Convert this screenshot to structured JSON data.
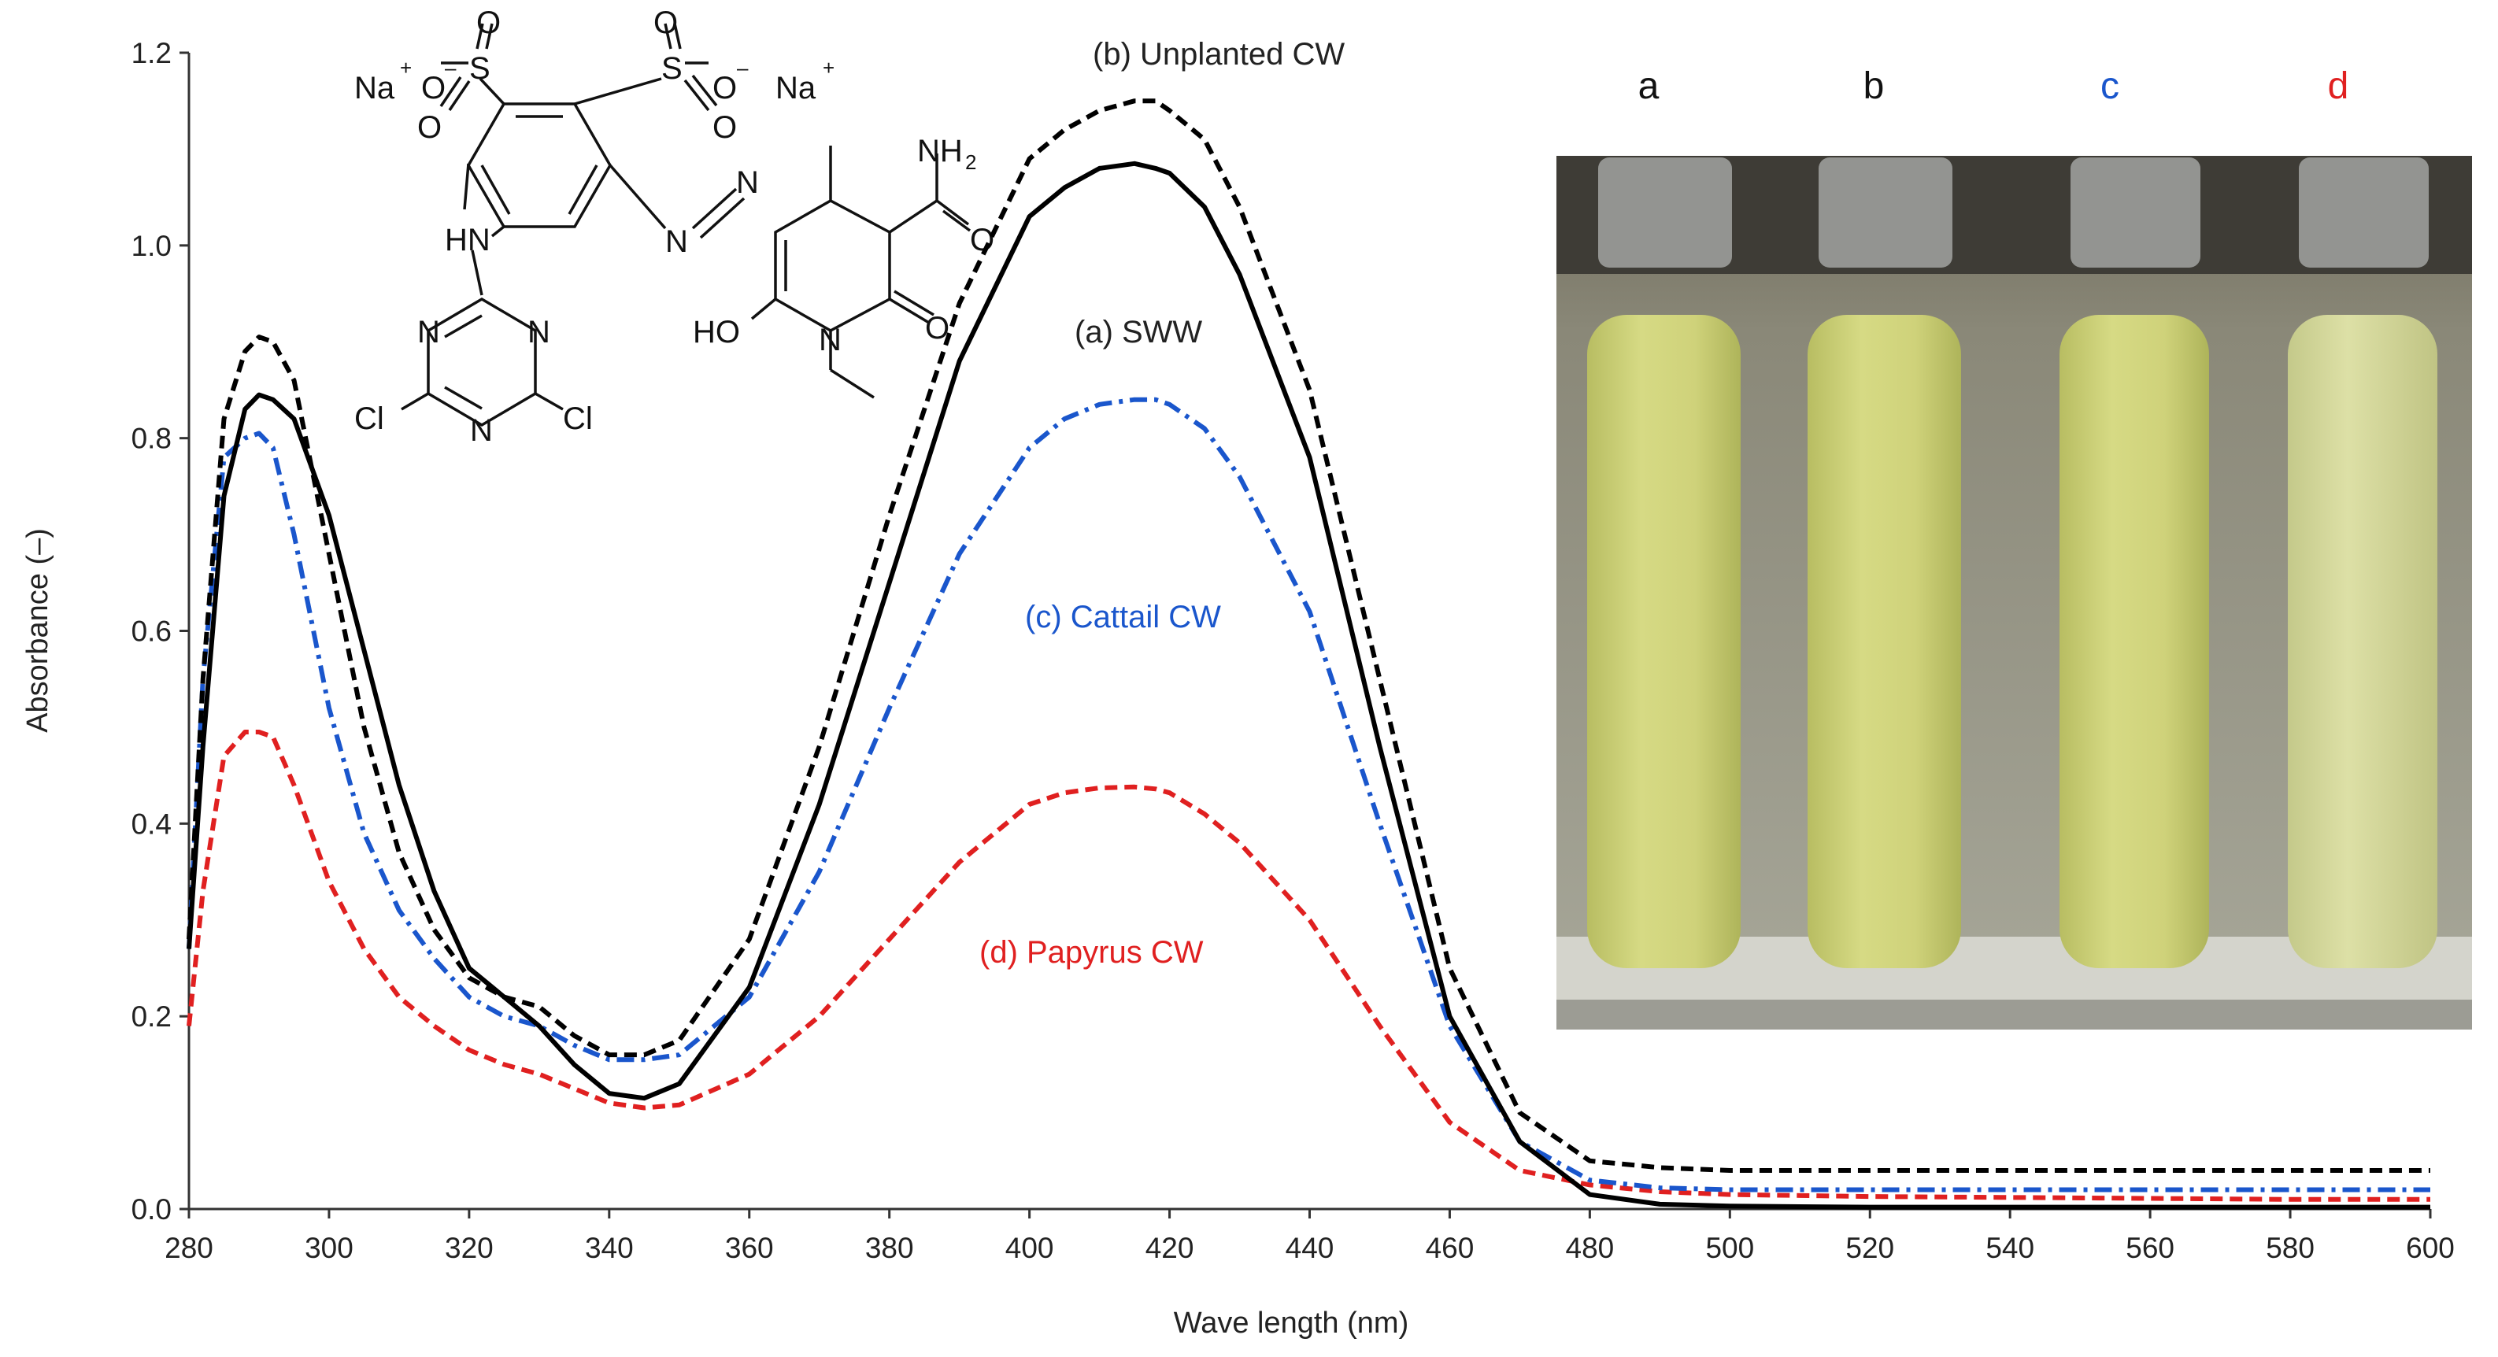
{
  "chart_data": {
    "type": "line",
    "xlabel": "Wave length (nm)",
    "ylabel": "Absorbance (–)",
    "xlim": [
      280,
      600
    ],
    "ylim": [
      0,
      1.2
    ],
    "grid": false,
    "xticks": [
      "280",
      "300",
      "320",
      "340",
      "360",
      "380",
      "400",
      "420",
      "440",
      "460",
      "480",
      "500",
      "520",
      "540",
      "560",
      "580",
      "600"
    ],
    "yticks": [
      "0.0",
      "0.2",
      "0.4",
      "0.6",
      "0.8",
      "1.0",
      "1.2"
    ],
    "series": [
      {
        "name": "(a) SWW",
        "color": "#000000",
        "dash": "solid",
        "x": [
          280,
          282,
          285,
          288,
          290,
          292,
          295,
          300,
          305,
          310,
          315,
          320,
          325,
          330,
          335,
          340,
          345,
          350,
          360,
          370,
          380,
          390,
          400,
          405,
          410,
          415,
          418,
          420,
          425,
          430,
          440,
          450,
          460,
          470,
          480,
          490,
          500,
          520,
          540,
          560,
          580,
          600
        ],
        "y": [
          0.27,
          0.48,
          0.74,
          0.83,
          0.845,
          0.84,
          0.82,
          0.72,
          0.58,
          0.44,
          0.33,
          0.25,
          0.22,
          0.19,
          0.15,
          0.12,
          0.115,
          0.13,
          0.23,
          0.42,
          0.65,
          0.88,
          1.03,
          1.06,
          1.08,
          1.085,
          1.08,
          1.075,
          1.04,
          0.97,
          0.78,
          0.48,
          0.2,
          0.07,
          0.015,
          0.005,
          0.003,
          0.002,
          0.002,
          0.002,
          0.002,
          0.002
        ]
      },
      {
        "name": "(b) Unplanted CW",
        "color": "#000000",
        "dash": "dashed",
        "x": [
          280,
          282,
          285,
          288,
          290,
          292,
          295,
          300,
          305,
          310,
          315,
          320,
          325,
          330,
          335,
          340,
          345,
          350,
          360,
          370,
          380,
          390,
          400,
          405,
          410,
          415,
          418,
          420,
          425,
          430,
          440,
          450,
          460,
          470,
          480,
          490,
          500,
          520,
          540,
          560,
          580,
          600
        ],
        "y": [
          0.28,
          0.55,
          0.82,
          0.89,
          0.905,
          0.9,
          0.86,
          0.68,
          0.5,
          0.37,
          0.29,
          0.24,
          0.22,
          0.21,
          0.18,
          0.16,
          0.16,
          0.175,
          0.28,
          0.48,
          0.72,
          0.94,
          1.09,
          1.12,
          1.14,
          1.15,
          1.15,
          1.14,
          1.11,
          1.04,
          0.85,
          0.55,
          0.25,
          0.1,
          0.05,
          0.043,
          0.04,
          0.04,
          0.04,
          0.04,
          0.04,
          0.04
        ]
      },
      {
        "name": "(c) Cattail CW",
        "color": "#1a56cc",
        "dash": "dashdot",
        "x": [
          280,
          282,
          285,
          288,
          290,
          292,
          295,
          300,
          305,
          310,
          315,
          320,
          325,
          330,
          335,
          340,
          345,
          350,
          360,
          370,
          380,
          390,
          400,
          405,
          410,
          415,
          418,
          420,
          425,
          430,
          440,
          450,
          460,
          470,
          480,
          490,
          500,
          520,
          540,
          560,
          580,
          600
        ],
        "y": [
          0.27,
          0.55,
          0.78,
          0.8,
          0.805,
          0.79,
          0.7,
          0.52,
          0.39,
          0.31,
          0.26,
          0.22,
          0.2,
          0.19,
          0.17,
          0.155,
          0.155,
          0.16,
          0.22,
          0.35,
          0.52,
          0.68,
          0.79,
          0.82,
          0.835,
          0.84,
          0.84,
          0.835,
          0.81,
          0.76,
          0.62,
          0.4,
          0.19,
          0.07,
          0.03,
          0.022,
          0.02,
          0.02,
          0.02,
          0.02,
          0.02,
          0.02
        ]
      },
      {
        "name": "(d) Papyrus CW",
        "color": "#e02020",
        "dash": "dashed",
        "x": [
          280,
          282,
          285,
          288,
          290,
          292,
          295,
          300,
          305,
          310,
          315,
          320,
          325,
          330,
          335,
          340,
          345,
          350,
          360,
          370,
          380,
          390,
          400,
          405,
          410,
          415,
          418,
          420,
          425,
          430,
          440,
          450,
          460,
          470,
          480,
          490,
          500,
          520,
          540,
          560,
          580,
          600
        ],
        "y": [
          0.19,
          0.33,
          0.47,
          0.495,
          0.495,
          0.49,
          0.44,
          0.34,
          0.27,
          0.22,
          0.19,
          0.165,
          0.15,
          0.14,
          0.125,
          0.11,
          0.105,
          0.108,
          0.14,
          0.2,
          0.28,
          0.36,
          0.42,
          0.432,
          0.437,
          0.438,
          0.436,
          0.432,
          0.41,
          0.38,
          0.3,
          0.19,
          0.09,
          0.04,
          0.025,
          0.018,
          0.015,
          0.013,
          0.012,
          0.011,
          0.01,
          0.01
        ]
      }
    ]
  },
  "structure": {
    "na_left": "Na",
    "na_right": "Na",
    "plus": "+",
    "minus": "–",
    "o": "O",
    "s": "S",
    "nh2": "NH",
    "nh2_sub": "2",
    "hn": "HN",
    "n": "N",
    "ho": "HO",
    "cl": "Cl"
  },
  "inset": {
    "tube_labels": [
      "a",
      "b",
      "c",
      "d"
    ],
    "tube_label_colors": [
      "#111111",
      "#111111",
      "#1a56cc",
      "#e02020"
    ]
  }
}
